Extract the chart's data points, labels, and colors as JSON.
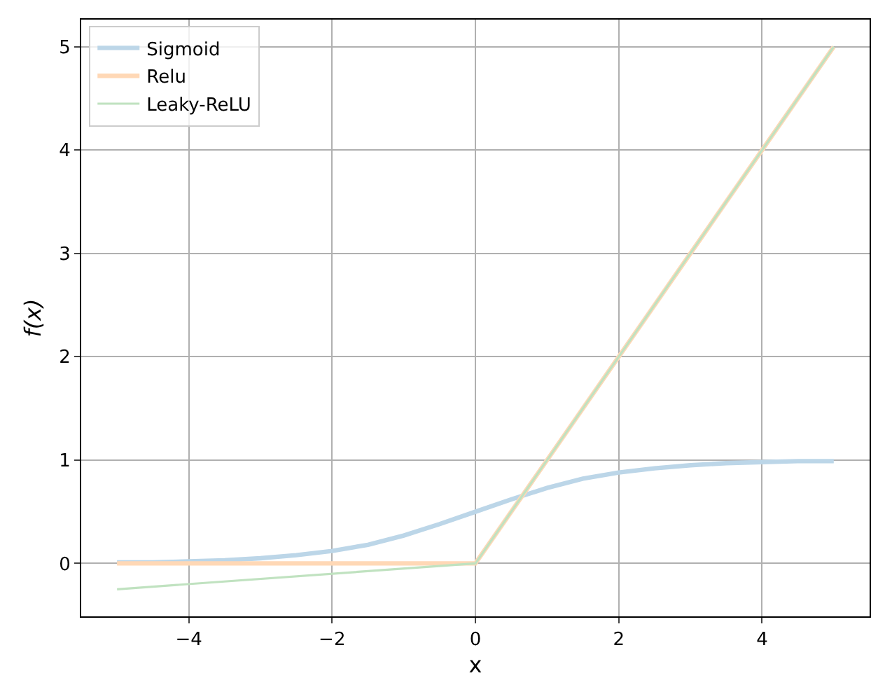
{
  "chart_data": {
    "type": "line",
    "xlabel": "x",
    "ylabel": "f(x)",
    "series": [
      {
        "name": "Sigmoid",
        "color": "#bcd6e8",
        "x": [
          -5,
          -4.5,
          -4,
          -3.5,
          -3,
          -2.5,
          -2,
          -1.5,
          -1,
          -0.5,
          0,
          0.5,
          1,
          1.5,
          2,
          2.5,
          3,
          3.5,
          4,
          4.5,
          5
        ],
        "values": [
          0.01,
          0.01,
          0.02,
          0.03,
          0.05,
          0.08,
          0.12,
          0.18,
          0.27,
          0.38,
          0.5,
          0.62,
          0.73,
          0.82,
          0.88,
          0.92,
          0.95,
          0.97,
          0.98,
          0.99,
          0.99
        ]
      },
      {
        "name": "Relu",
        "color": "#ffd8b6",
        "x": [
          -5,
          0,
          5
        ],
        "values": [
          0,
          0,
          5
        ]
      },
      {
        "name": "Leaky-ReLU",
        "color": "#c0e2c0",
        "x": [
          -5,
          0,
          5
        ],
        "values": [
          -0.25,
          0,
          5
        ]
      }
    ],
    "xlim": [
      -5.5,
      5.5
    ],
    "xticks": [
      {
        "value": -4,
        "label": "−4"
      },
      {
        "value": -2,
        "label": "−2"
      },
      0,
      2,
      4
    ],
    "ylim": [
      -0.5125,
      5.2625
    ],
    "yticks": [
      0,
      1,
      2,
      3,
      4,
      5
    ],
    "grid": true,
    "legend": "top left",
    "marker": "none",
    "line_style": "solid"
  }
}
